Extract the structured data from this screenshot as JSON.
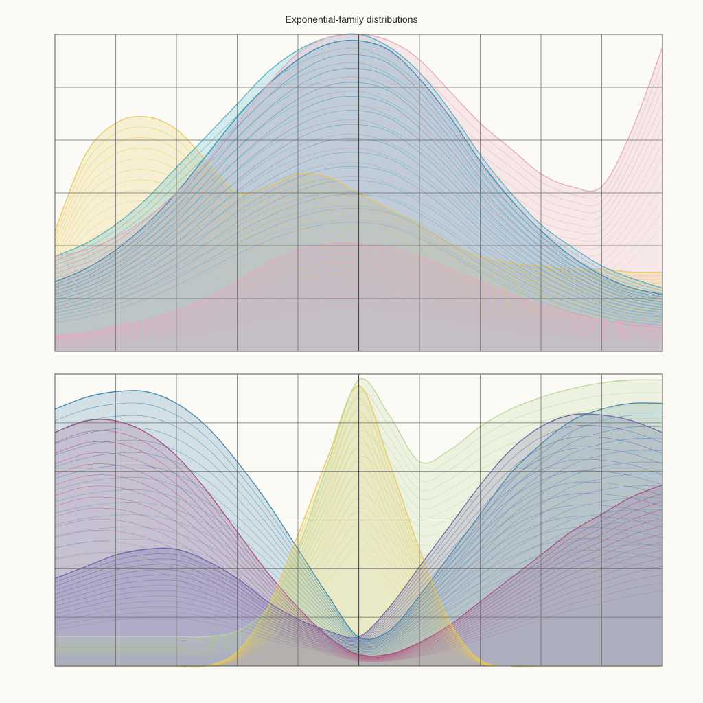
{
  "title": "Exponential-family distributions",
  "colors": {
    "yellow": "#e9c95a",
    "blue": "#3f86b0",
    "teal": "#4fb3c8",
    "pink": "#e8a7bd",
    "magenta": "#b0487e",
    "purple": "#6b63a8",
    "green": "#b9d89b",
    "grid": "#6b6b6b"
  },
  "chart_data": [
    {
      "type": "area",
      "panel": "top",
      "xlim": [
        0,
        1
      ],
      "ylim": [
        0,
        1
      ],
      "grid": true,
      "x": [
        0,
        0.05,
        0.1,
        0.15,
        0.2,
        0.25,
        0.3,
        0.35,
        0.4,
        0.45,
        0.5,
        0.55,
        0.6,
        0.65,
        0.7,
        0.75,
        0.8,
        0.85,
        0.9,
        0.95,
        1.0
      ],
      "series": [
        {
          "color": "yellow",
          "values": [
            0.38,
            0.62,
            0.72,
            0.74,
            0.7,
            0.6,
            0.5,
            0.52,
            0.56,
            0.55,
            0.5,
            0.45,
            0.4,
            0.34,
            0.3,
            0.28,
            0.27,
            0.26,
            0.26,
            0.25,
            0.25
          ]
        },
        {
          "color": "blue",
          "values": [
            0.22,
            0.26,
            0.32,
            0.4,
            0.5,
            0.62,
            0.74,
            0.84,
            0.92,
            0.97,
            0.98,
            0.95,
            0.86,
            0.74,
            0.6,
            0.48,
            0.38,
            0.3,
            0.24,
            0.2,
            0.18
          ]
        },
        {
          "color": "teal",
          "values": [
            0.3,
            0.34,
            0.4,
            0.48,
            0.58,
            0.68,
            0.78,
            0.88,
            0.95,
            0.99,
            1.0,
            0.96,
            0.88,
            0.76,
            0.62,
            0.5,
            0.4,
            0.33,
            0.27,
            0.23,
            0.2
          ]
        },
        {
          "color": "pink",
          "values": [
            0.05,
            0.06,
            0.08,
            0.1,
            0.13,
            0.17,
            0.22,
            0.28,
            0.32,
            0.34,
            0.34,
            0.33,
            0.3,
            0.26,
            0.22,
            0.18,
            0.15,
            0.12,
            0.1,
            0.09,
            0.08
          ]
        },
        {
          "color": "pink",
          "values": [
            0.3,
            0.32,
            0.36,
            0.42,
            0.5,
            0.6,
            0.72,
            0.84,
            0.94,
            0.99,
            1.0,
            0.98,
            0.92,
            0.82,
            0.72,
            0.64,
            0.56,
            0.52,
            0.52,
            0.7,
            0.96
          ]
        }
      ]
    },
    {
      "type": "area",
      "panel": "bottom",
      "xlim": [
        0,
        1
      ],
      "ylim": [
        0,
        1
      ],
      "grid": true,
      "x": [
        0,
        0.05,
        0.1,
        0.15,
        0.2,
        0.25,
        0.3,
        0.35,
        0.4,
        0.45,
        0.5,
        0.55,
        0.6,
        0.65,
        0.7,
        0.75,
        0.8,
        0.85,
        0.9,
        0.95,
        1.0
      ],
      "series": [
        {
          "color": "magenta",
          "values": [
            0.8,
            0.84,
            0.84,
            0.8,
            0.72,
            0.6,
            0.46,
            0.32,
            0.2,
            0.1,
            0.04,
            0.04,
            0.08,
            0.14,
            0.22,
            0.3,
            0.38,
            0.46,
            0.52,
            0.58,
            0.62
          ]
        },
        {
          "color": "blue",
          "values": [
            0.88,
            0.92,
            0.94,
            0.94,
            0.9,
            0.82,
            0.7,
            0.56,
            0.4,
            0.24,
            0.1,
            0.12,
            0.24,
            0.38,
            0.52,
            0.66,
            0.76,
            0.84,
            0.88,
            0.9,
            0.9
          ]
        },
        {
          "color": "yellow",
          "values": [
            0.0,
            0.0,
            0.0,
            0.0,
            0.0,
            0.0,
            0.05,
            0.2,
            0.45,
            0.72,
            0.96,
            0.7,
            0.4,
            0.15,
            0.02,
            0.0,
            0.0,
            0.0,
            0.0,
            0.0,
            0.0
          ]
        },
        {
          "color": "green",
          "values": [
            0.1,
            0.1,
            0.1,
            0.1,
            0.1,
            0.1,
            0.12,
            0.2,
            0.4,
            0.7,
            0.98,
            0.86,
            0.7,
            0.74,
            0.82,
            0.88,
            0.92,
            0.95,
            0.97,
            0.98,
            0.98
          ]
        },
        {
          "color": "purple",
          "values": [
            0.3,
            0.34,
            0.38,
            0.4,
            0.4,
            0.36,
            0.3,
            0.22,
            0.16,
            0.12,
            0.1,
            0.2,
            0.34,
            0.48,
            0.62,
            0.74,
            0.82,
            0.86,
            0.86,
            0.84,
            0.8
          ]
        }
      ]
    }
  ]
}
